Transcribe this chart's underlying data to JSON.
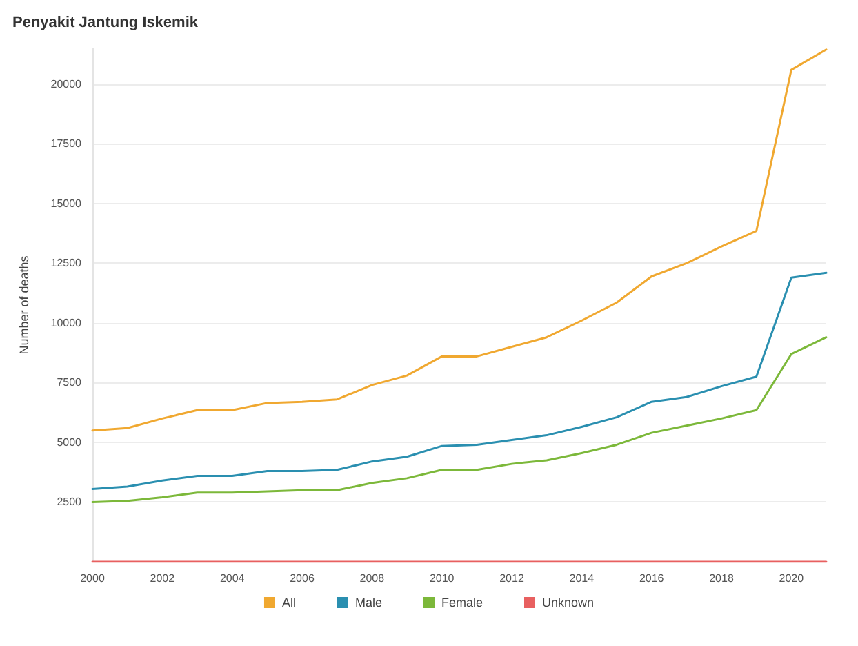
{
  "chart_data": {
    "type": "line",
    "title": "Penyakit Jantung Iskemik",
    "ylabel": "Number of deaths",
    "x": [
      2000,
      2001,
      2002,
      2003,
      2004,
      2005,
      2006,
      2007,
      2008,
      2009,
      2010,
      2011,
      2012,
      2013,
      2014,
      2015,
      2016,
      2017,
      2018,
      2019,
      2020,
      2021
    ],
    "series": [
      {
        "name": "All",
        "color": "#f0a830",
        "values": [
          5500,
          5600,
          6000,
          6350,
          6350,
          6650,
          6700,
          6800,
          7400,
          7800,
          8600,
          8600,
          9000,
          9400,
          10100,
          10850,
          11950,
          12500,
          13200,
          13850,
          20600,
          21450
        ]
      },
      {
        "name": "Male",
        "color": "#2a8fb0",
        "values": [
          3050,
          3150,
          3400,
          3600,
          3600,
          3800,
          3800,
          3850,
          4200,
          4400,
          4850,
          4900,
          5100,
          5300,
          5650,
          6050,
          6700,
          6900,
          7350,
          7750,
          11900,
          12100
        ]
      },
      {
        "name": "Female",
        "color": "#7cb83a",
        "values": [
          2500,
          2550,
          2700,
          2900,
          2900,
          2950,
          3000,
          3000,
          3300,
          3500,
          3850,
          3850,
          4100,
          4250,
          4550,
          4900,
          5400,
          5700,
          6000,
          6350,
          8700,
          9400
        ]
      },
      {
        "name": "Unknown",
        "color": "#e86060",
        "values": [
          0,
          0,
          0,
          0,
          0,
          0,
          0,
          0,
          0,
          0,
          0,
          0,
          0,
          0,
          0,
          0,
          0,
          0,
          0,
          0,
          0,
          0
        ]
      }
    ],
    "xlim": [
      2000,
      2021
    ],
    "xticks": [
      2000,
      2002,
      2004,
      2006,
      2008,
      2010,
      2012,
      2014,
      2016,
      2018,
      2020
    ],
    "ylim": [
      0,
      21500
    ],
    "yticks": [
      2500,
      5000,
      7500,
      10000,
      12500,
      15000,
      17500,
      20000
    ],
    "grid": "y",
    "legend": "bottom",
    "marker": "none"
  }
}
